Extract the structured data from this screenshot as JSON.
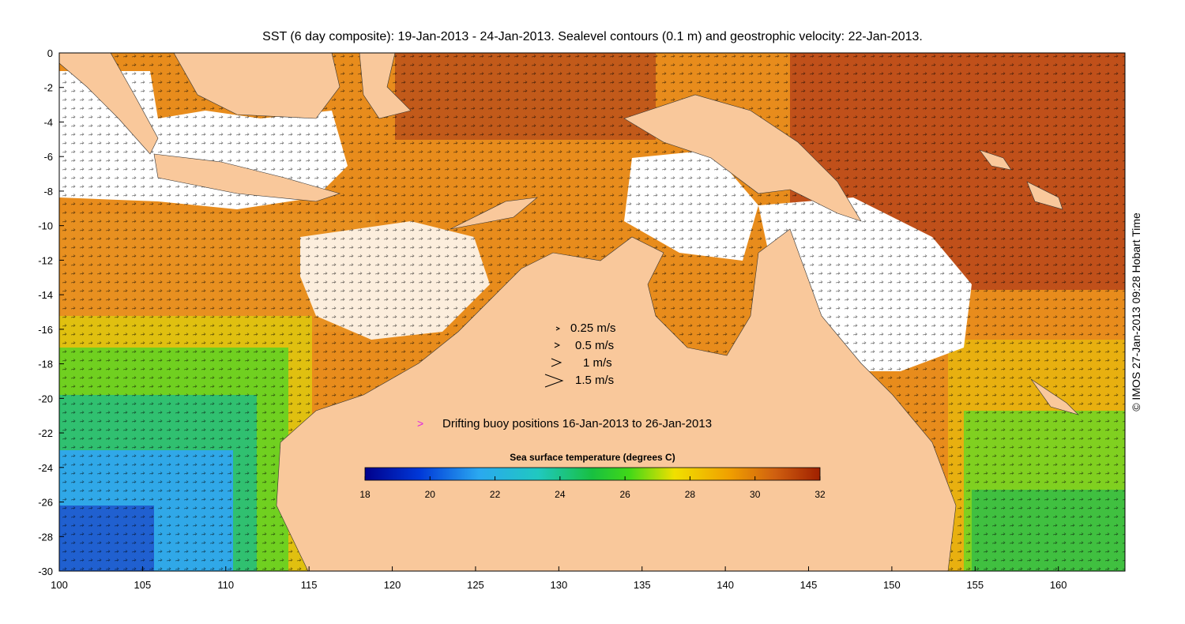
{
  "title": "SST (6 day composite): 19-Jan-2013 - 24-Jan-2013. Sealevel contours (0.1 m) and geostrophic velocity: 22-Jan-2013.",
  "credit": "© IMOS 27-Jan-2013 09:28 Hobart Time",
  "axes": {
    "x_ticks": [
      "100",
      "105",
      "110",
      "115",
      "120",
      "125",
      "130",
      "135",
      "140",
      "145",
      "150",
      "155",
      "160"
    ],
    "y_ticks": [
      "0",
      "-2",
      "-4",
      "-6",
      "-8",
      "-10",
      "-12",
      "-14",
      "-16",
      "-18",
      "-20",
      "-22",
      "-24",
      "-26",
      "-28",
      "-30"
    ],
    "lon_range": [
      100,
      164
    ],
    "lat_range": [
      -30,
      0
    ]
  },
  "velocity_legend": [
    {
      "label": "0.25 m/s",
      "speed": 0.25
    },
    {
      "label": "0.5 m/s",
      "speed": 0.5
    },
    {
      "label": "1 m/s",
      "speed": 1
    },
    {
      "label": "1.5 m/s",
      "speed": 1.5
    }
  ],
  "buoy_legend": {
    "label": "Drifting buoy positions 16-Jan-2013 to 26-Jan-2013",
    "symbol": ">"
  },
  "colorbar": {
    "title": "Sea surface temperature (degrees C)",
    "ticks": [
      "18",
      "20",
      "22",
      "24",
      "26",
      "28",
      "30",
      "32"
    ],
    "min": 18,
    "max": 32
  },
  "colors": {
    "land": "#f9c89b",
    "buoy": "#e020e0"
  }
}
